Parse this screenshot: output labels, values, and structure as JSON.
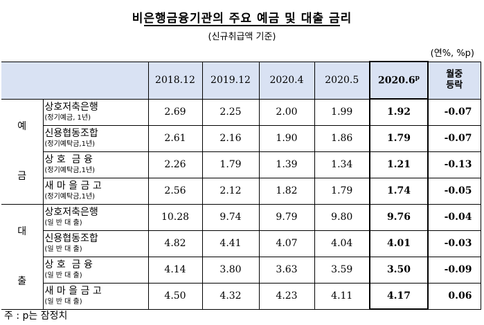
{
  "title": "비은행금융기관의 주요 예금 및 대출 금리",
  "subtitle": "(신규취급액 기준)",
  "unit": "(연%, %p)",
  "columns": [
    "2018.12",
    "2019.12",
    "2020.4",
    "2020.5",
    "2020.6",
    "월중\n등락"
  ],
  "prelim_mark": "p",
  "change_header_1": "월중",
  "change_header_2": "등락",
  "groups": [
    {
      "label": "예\n\n금",
      "rows": [
        {
          "name": "상호저축은행",
          "sub": "(정기예금, 1년)",
          "values": [
            "2.69",
            "2.25",
            "2.00",
            "1.99",
            "1.92",
            "-0.07"
          ]
        },
        {
          "name": "신용협동조합",
          "sub": "(정기예탁금,1년)",
          "values": [
            "2.61",
            "2.16",
            "1.90",
            "1.86",
            "1.79",
            "-0.07"
          ]
        },
        {
          "name": "상 호  금 융",
          "sub": "(정기예탁금,1년)",
          "values": [
            "2.26",
            "1.79",
            "1.39",
            "1.34",
            "1.21",
            "-0.13"
          ]
        },
        {
          "name": "새 마 을 금 고",
          "sub": "(정기예탁금,1년)",
          "values": [
            "2.56",
            "2.12",
            "1.82",
            "1.79",
            "1.74",
            "-0.05"
          ]
        }
      ]
    },
    {
      "label": "대\n\n출",
      "rows": [
        {
          "name": "상호저축은행",
          "sub": "(일 반 대 출)",
          "values": [
            "10.28",
            "9.74",
            "9.79",
            "9.80",
            "9.76",
            "-0.04"
          ]
        },
        {
          "name": "신용협동조합",
          "sub": "(일 반 대 출)",
          "values": [
            "4.82",
            "4.41",
            "4.07",
            "4.04",
            "4.01",
            "-0.03"
          ]
        },
        {
          "name": "상 호  금 융",
          "sub": "(일 반 대 출)",
          "values": [
            "4.14",
            "3.80",
            "3.63",
            "3.59",
            "3.50",
            "-0.09"
          ]
        },
        {
          "name": "새 마 을 금 고",
          "sub": "(일 반 대 출)",
          "values": [
            "4.50",
            "4.32",
            "4.23",
            "4.11",
            "4.17",
            "0.06"
          ]
        }
      ]
    }
  ],
  "note": "주 : p는 잠정치"
}
